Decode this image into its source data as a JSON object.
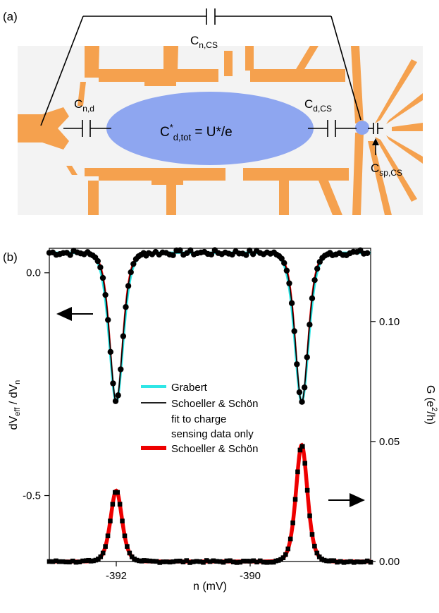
{
  "panel_a": {
    "label": "(a)",
    "cap_top": "C",
    "cap_top_sub": "n,CS",
    "cap_left": "C",
    "cap_left_sub": "n,d",
    "dot_main": "C",
    "dot_main_sup": "*",
    "dot_main_sub": "d,tot",
    "dot_main_rest": " = U*/e",
    "cap_right": "C",
    "cap_right_sub": "d,CS",
    "cap_sensor": "C",
    "cap_sensor_sub": "sp,CS",
    "colors": {
      "gate": "#f5a14e",
      "dot": "#8ea6f0",
      "background": "#f3f3f3"
    }
  },
  "panel_b": {
    "label": "(b)",
    "xlabel": "n (mV)",
    "ylabel_left": "dV",
    "ylabel_left_sub1": "eff",
    "ylabel_left_mid": " / dV",
    "ylabel_left_sub2": "n",
    "ylabel_right": "G (e",
    "ylabel_right_sup": "2",
    "ylabel_right_end": "/h)",
    "legend": [
      {
        "label": "Grabert",
        "color": "#2ee6e6"
      },
      {
        "label": "Schoeller & Schön",
        "color": "#000000"
      },
      {
        "label": "fit to charge",
        "color": ""
      },
      {
        "label": "sensing data only",
        "color": ""
      },
      {
        "label": "Schoeller & Schön",
        "color": "#ee0000"
      }
    ]
  },
  "chart_data": {
    "type": "line",
    "x_range": [
      -393.0,
      -388.2
    ],
    "x_ticks": [
      "-392",
      "-390"
    ],
    "x_tick_values": [
      -392,
      -390
    ],
    "y_left_range": [
      -0.648,
      0.055
    ],
    "y_left_ticks": [
      "0.0",
      "-0.5"
    ],
    "y_left_tick_values": [
      0.0,
      -0.5
    ],
    "y_right_range": [
      0.0,
      0.1305
    ],
    "y_right_ticks": [
      "0.10",
      "0.05",
      "0.00"
    ],
    "y_right_tick_values": [
      0.1,
      0.05,
      0.0
    ],
    "peaks_mV": [
      -392.0,
      -389.23
    ],
    "charge_sensing": {
      "axis": "left",
      "baseline": 0.045,
      "dip_minima": [
        -0.29,
        -0.29
      ],
      "dip_width_mV": 0.13,
      "markers": "filled circles"
    },
    "conductance": {
      "axis": "right",
      "baseline": 0.0,
      "peak_heights": [
        0.0295,
        0.0485
      ],
      "peak_width_mV": 0.115,
      "markers": "filled squares"
    },
    "series": [
      {
        "name": "Grabert",
        "axis": "left",
        "color": "#2ee6e6"
      },
      {
        "name": "Schoeller & Schön",
        "axis": "left",
        "color": "#000000"
      },
      {
        "name": "Schoeller & Schön",
        "axis": "right",
        "color": "#ee0000"
      }
    ],
    "arrows": [
      {
        "points_to": "left"
      },
      {
        "points_to": "right"
      }
    ]
  }
}
